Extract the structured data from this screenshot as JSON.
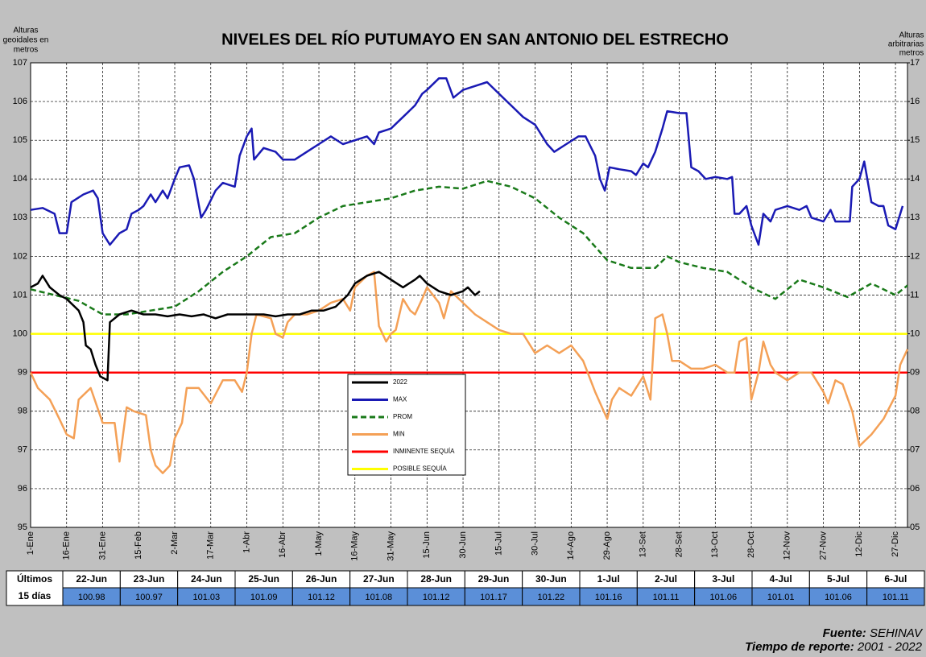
{
  "chart_data": {
    "type": "line",
    "title": "NIVELES DEL RÍO PUTUMAYO  EN SAN ANTONIO DEL ESTRECHO",
    "ylabel": [
      "Alturas",
      "geoidales en",
      "metros"
    ],
    "y2label": [
      "Alturas",
      "arbitrarias en",
      "metros"
    ],
    "xlim": [
      1,
      366
    ],
    "ylim": [
      95,
      107
    ],
    "y2lim": [
      5,
      17
    ],
    "yticks": [
      95,
      96,
      97,
      98,
      99,
      100,
      101,
      102,
      103,
      104,
      105,
      106,
      107
    ],
    "y2ticks": [
      {
        "value": 5,
        "label": "05"
      },
      {
        "value": 6,
        "label": "06"
      },
      {
        "value": 7,
        "label": "07"
      },
      {
        "value": 8,
        "label": "08"
      },
      {
        "value": 9,
        "label": "09"
      },
      10,
      11,
      12,
      13,
      14,
      15,
      16,
      17
    ],
    "xticks": [
      {
        "value": 1,
        "label": "1-Ene"
      },
      {
        "value": 16,
        "label": "16-Ene"
      },
      {
        "value": 31,
        "label": "31-Ene"
      },
      {
        "value": 46,
        "label": "15-Feb"
      },
      {
        "value": 61,
        "label": "2-Mar"
      },
      {
        "value": 76,
        "label": "17-Mar"
      },
      {
        "value": 91,
        "label": "1-Abr"
      },
      {
        "value": 106,
        "label": "16-Abr"
      },
      {
        "value": 121,
        "label": "1-May"
      },
      {
        "value": 136,
        "label": "16-May"
      },
      {
        "value": 151,
        "label": "31-May"
      },
      {
        "value": 166,
        "label": "15-Jun"
      },
      {
        "value": 181,
        "label": "30-Jun"
      },
      {
        "value": 196,
        "label": "15-Jul"
      },
      {
        "value": 211,
        "label": "30-Jul"
      },
      {
        "value": 226,
        "label": "14-Ago"
      },
      {
        "value": 241,
        "label": "29-Ago"
      },
      {
        "value": 256,
        "label": "13-Set"
      },
      {
        "value": 271,
        "label": "28-Set"
      },
      {
        "value": 286,
        "label": "13-Oct"
      },
      {
        "value": 301,
        "label": "28-Oct"
      },
      {
        "value": 316,
        "label": "12-Nov"
      },
      {
        "value": 331,
        "label": "27-Nov"
      },
      {
        "value": 346,
        "label": "12-Dic"
      },
      {
        "value": 361,
        "label": "27-Dic"
      }
    ],
    "grid": true,
    "series": [
      {
        "name": "2022",
        "color": "#000000",
        "dashed": false,
        "x": [
          1,
          4,
          6,
          9,
          13,
          16,
          21,
          23,
          24,
          26,
          28,
          30,
          33,
          34,
          38,
          43,
          48,
          53,
          58,
          63,
          68,
          73,
          78,
          83,
          88,
          93,
          98,
          103,
          108,
          113,
          118,
          123,
          128,
          133,
          136,
          141,
          146,
          151,
          156,
          161,
          163,
          166,
          171,
          176,
          181,
          183,
          186,
          188
        ],
        "values": [
          101.2,
          101.3,
          101.5,
          101.2,
          101.0,
          100.9,
          100.6,
          100.3,
          99.7,
          99.6,
          99.2,
          98.9,
          98.8,
          100.3,
          100.5,
          100.6,
          100.5,
          100.5,
          100.45,
          100.5,
          100.45,
          100.5,
          100.4,
          100.5,
          100.5,
          100.5,
          100.5,
          100.45,
          100.5,
          100.5,
          100.6,
          100.6,
          100.7,
          101.0,
          101.3,
          101.5,
          101.6,
          101.4,
          101.2,
          101.4,
          101.5,
          101.3,
          101.1,
          101.0,
          101.1,
          101.2,
          101.0,
          101.1
        ]
      },
      {
        "name": "MAX",
        "color": "#1a1ab4",
        "dashed": false,
        "x": [
          1,
          6,
          11,
          13,
          16,
          18,
          23,
          27,
          29,
          31,
          34,
          38,
          41,
          43,
          46,
          48,
          51,
          53,
          56,
          58,
          61,
          63,
          67,
          69,
          72,
          74,
          78,
          81,
          86,
          88,
          91,
          93,
          94,
          98,
          103,
          106,
          111,
          116,
          121,
          126,
          131,
          136,
          141,
          144,
          146,
          151,
          156,
          161,
          164,
          166,
          171,
          174,
          177,
          181,
          186,
          191,
          196,
          201,
          206,
          211,
          216,
          219,
          224,
          229,
          232,
          236,
          238,
          240,
          242,
          246,
          251,
          253,
          256,
          258,
          261,
          264,
          266,
          271,
          274,
          276,
          279,
          282,
          286,
          291,
          293,
          294,
          296,
          299,
          301,
          304,
          306,
          309,
          311,
          316,
          321,
          324,
          326,
          331,
          334,
          336,
          339,
          342,
          343,
          346,
          348,
          351,
          354,
          356,
          358,
          361,
          364
        ],
        "values": [
          103.2,
          103.25,
          103.1,
          102.6,
          102.6,
          103.4,
          103.6,
          103.7,
          103.5,
          102.6,
          102.3,
          102.6,
          102.7,
          103.1,
          103.2,
          103.3,
          103.6,
          103.4,
          103.7,
          103.5,
          104.0,
          104.3,
          104.35,
          104.0,
          103.0,
          103.2,
          103.7,
          103.9,
          103.8,
          104.6,
          105.1,
          105.3,
          104.5,
          104.8,
          104.7,
          104.5,
          104.5,
          104.7,
          104.9,
          105.1,
          104.9,
          105.0,
          105.1,
          104.9,
          105.2,
          105.3,
          105.6,
          105.9,
          106.2,
          106.3,
          106.6,
          106.6,
          106.1,
          106.3,
          106.4,
          106.5,
          106.2,
          105.9,
          105.6,
          105.4,
          104.9,
          104.7,
          104.9,
          105.1,
          105.1,
          104.6,
          104.0,
          103.7,
          104.3,
          104.25,
          104.2,
          104.1,
          104.4,
          104.3,
          104.7,
          105.3,
          105.75,
          105.7,
          105.7,
          104.3,
          104.2,
          104.0,
          104.05,
          104.0,
          104.05,
          103.1,
          103.1,
          103.3,
          102.8,
          102.3,
          103.1,
          102.9,
          103.2,
          103.3,
          103.2,
          103.3,
          103.0,
          102.9,
          103.2,
          102.9,
          102.9,
          102.9,
          103.8,
          104.0,
          104.45,
          103.4,
          103.3,
          103.3,
          102.8,
          102.7,
          103.3
        ]
      },
      {
        "name": "PROM",
        "color": "#1a7a1a",
        "dashed": true,
        "x": [
          1,
          11,
          21,
          31,
          41,
          51,
          61,
          71,
          81,
          91,
          101,
          111,
          121,
          131,
          141,
          151,
          161,
          171,
          181,
          191,
          201,
          211,
          221,
          231,
          241,
          251,
          261,
          266,
          271,
          281,
          291,
          301,
          311,
          321,
          331,
          341,
          351,
          361,
          366
        ],
        "values": [
          101.15,
          101.0,
          100.85,
          100.5,
          100.5,
          100.6,
          100.7,
          101.1,
          101.6,
          102.0,
          102.5,
          102.6,
          103.0,
          103.3,
          103.4,
          103.5,
          103.7,
          103.8,
          103.75,
          103.95,
          103.8,
          103.5,
          103.0,
          102.6,
          101.9,
          101.7,
          101.7,
          102.0,
          101.85,
          101.7,
          101.6,
          101.2,
          100.9,
          101.4,
          101.2,
          100.95,
          101.3,
          101.0,
          101.25
        ]
      },
      {
        "name": "MIN",
        "color": "#f4a056",
        "dashed": false,
        "x": [
          1,
          4,
          9,
          13,
          16,
          19,
          21,
          26,
          31,
          36,
          38,
          41,
          44,
          49,
          51,
          53,
          56,
          59,
          61,
          64,
          66,
          71,
          76,
          81,
          86,
          89,
          91,
          93,
          95,
          101,
          103,
          106,
          108,
          111,
          116,
          121,
          126,
          131,
          134,
          136,
          141,
          144,
          146,
          149,
          151,
          153,
          156,
          159,
          161,
          164,
          166,
          171,
          173,
          176,
          181,
          186,
          191,
          196,
          201,
          206,
          211,
          216,
          221,
          226,
          231,
          236,
          241,
          243,
          246,
          251,
          256,
          259,
          261,
          264,
          266,
          268,
          271,
          276,
          281,
          286,
          291,
          294,
          296,
          299,
          301,
          304,
          306,
          309,
          311,
          316,
          321,
          326,
          331,
          333,
          336,
          339,
          343,
          346,
          351,
          356,
          361,
          363,
          366
        ],
        "values": [
          99.0,
          98.6,
          98.3,
          97.8,
          97.4,
          97.3,
          98.3,
          98.6,
          97.7,
          97.7,
          96.7,
          98.1,
          98.0,
          97.9,
          97.0,
          96.6,
          96.4,
          96.6,
          97.3,
          97.7,
          98.6,
          98.6,
          98.2,
          98.8,
          98.8,
          98.5,
          99.0,
          100.0,
          100.5,
          100.4,
          100.0,
          99.9,
          100.3,
          100.5,
          100.5,
          100.6,
          100.8,
          100.9,
          100.6,
          101.2,
          101.5,
          101.6,
          100.2,
          99.8,
          100.0,
          100.1,
          100.9,
          100.6,
          100.5,
          100.9,
          101.2,
          100.8,
          100.4,
          101.1,
          100.8,
          100.5,
          100.3,
          100.1,
          100.0,
          100.0,
          99.5,
          99.7,
          99.5,
          99.7,
          99.3,
          98.5,
          97.8,
          98.3,
          98.6,
          98.4,
          98.9,
          98.3,
          100.4,
          100.5,
          100.0,
          99.3,
          99.3,
          99.1,
          99.1,
          99.2,
          99.0,
          99.0,
          99.8,
          99.9,
          98.3,
          99.0,
          99.8,
          99.2,
          99.0,
          98.8,
          99.0,
          99.0,
          98.5,
          98.2,
          98.8,
          98.7,
          98.0,
          97.1,
          97.4,
          97.8,
          98.4,
          99.2,
          99.6
        ]
      },
      {
        "name": "INMINENTE SEQUÍA",
        "color": "#ff0000",
        "dashed": false,
        "x": [
          1,
          366
        ],
        "values": [
          99,
          99
        ]
      },
      {
        "name": "POSIBLE SEQUÍA",
        "color": "#ffff00",
        "dashed": false,
        "x": [
          1,
          366
        ],
        "values": [
          100,
          100
        ]
      }
    ]
  },
  "table": {
    "header": [
      "Últimos",
      "15 días"
    ],
    "dates": [
      "22-Jun",
      "23-Jun",
      "24-Jun",
      "25-Jun",
      "26-Jun",
      "27-Jun",
      "28-Jun",
      "29-Jun",
      "30-Jun",
      "1-Jul",
      "2-Jul",
      "3-Jul",
      "4-Jul",
      "5-Jul",
      "6-Jul"
    ],
    "values": [
      100.98,
      100.97,
      101.03,
      101.09,
      101.12,
      101.08,
      101.12,
      101.17,
      101.22,
      101.16,
      101.11,
      101.06,
      101.01,
      101.06,
      101.11
    ]
  },
  "footer": {
    "source_label": "Fuente:",
    "source": "SEHINAV",
    "period_label": "Tiempo de reporte:",
    "period": "2001 -  2022"
  }
}
